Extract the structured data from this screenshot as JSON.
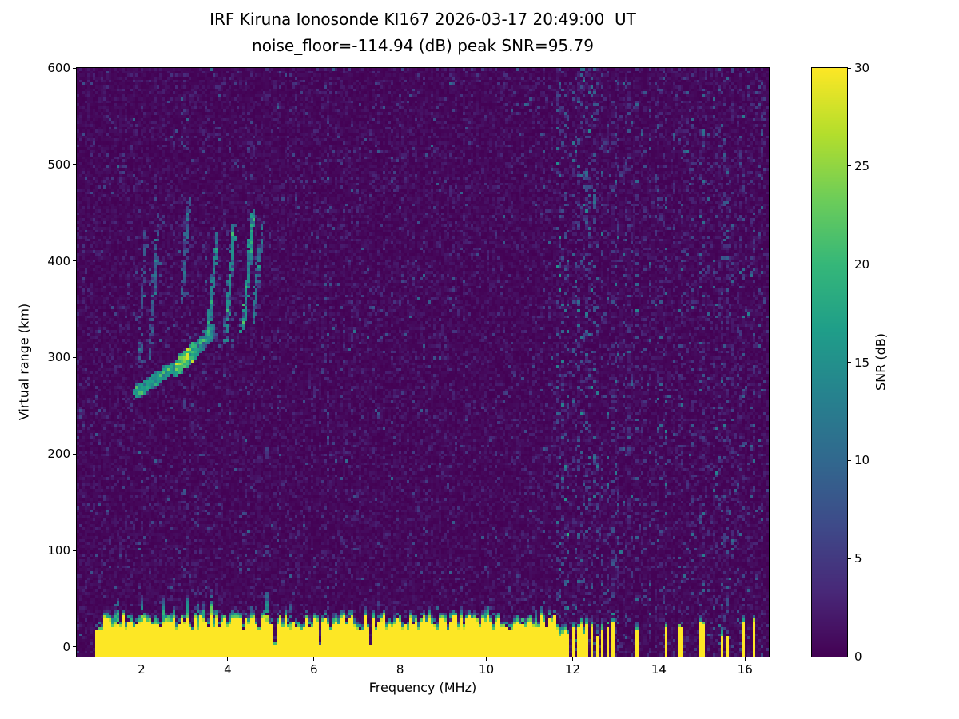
{
  "figure": {
    "station": "IRF Kiruna Ionosonde KI167",
    "timestamp_ut": "2026-03-17 20:49:00 UT",
    "noise_floor_db": -114.94,
    "peak_snr_db": 95.79,
    "background": "#ffffff"
  },
  "chart_data": {
    "type": "heatmap",
    "title": "IRF Kiruna Ionosonde KI167 2026-03-17 20:49:00  UT",
    "subtitle": "noise_floor=-114.94 (dB) peak SNR=95.79",
    "xlabel": "Frequency (MHz)",
    "ylabel": "Virtual range (km)",
    "xlim": [
      0.5,
      16.55
    ],
    "ylim": [
      -10,
      600
    ],
    "xticks": [
      2,
      4,
      6,
      8,
      10,
      12,
      14,
      16
    ],
    "yticks": [
      0,
      100,
      200,
      300,
      400,
      500,
      600
    ],
    "grid": false,
    "colorbar": {
      "label": "SNR (dB)",
      "min": 0,
      "max": 30,
      "ticks": [
        0,
        5,
        10,
        15,
        20,
        25,
        30
      ],
      "colormap": "viridis",
      "low_color": "#440154",
      "high_color": "#fde725"
    },
    "features": {
      "background_noise_mean_db": 0.8,
      "ground_pulse": {
        "f_start": 0.93,
        "f_end": 11.63,
        "top_km_min": 18,
        "top_km_max": 34,
        "value_db": 30
      },
      "band_gaps_mhz": [
        5.12,
        6.14,
        7.3
      ],
      "rfi_bars_mhz": [
        11.68,
        11.79,
        11.9,
        12.01,
        12.12,
        12.23,
        12.34,
        12.46,
        12.58,
        12.7,
        12.82,
        12.95,
        13.5,
        14.18,
        14.52,
        15.0,
        15.45,
        15.58,
        15.95,
        16.2
      ],
      "rfi_columns": [
        {
          "f": 1.7,
          "s": 0.15
        },
        {
          "f": 2.2,
          "s": 0.2
        },
        {
          "f": 2.6,
          "s": 0.12
        },
        {
          "f": 3.0,
          "s": 0.15
        },
        {
          "f": 3.45,
          "s": 0.12
        },
        {
          "f": 3.8,
          "s": 0.12
        },
        {
          "f": 4.45,
          "s": 0.15
        },
        {
          "f": 5.2,
          "s": 0.1
        },
        {
          "f": 5.6,
          "s": 0.1
        },
        {
          "f": 6.3,
          "s": 0.2
        },
        {
          "f": 6.9,
          "s": 0.1
        },
        {
          "f": 7.5,
          "s": 0.12
        },
        {
          "f": 8.1,
          "s": 0.1
        },
        {
          "f": 8.6,
          "s": 0.1
        },
        {
          "f": 9.2,
          "s": 0.1
        },
        {
          "f": 9.8,
          "s": 0.1
        },
        {
          "f": 10.4,
          "s": 0.1
        },
        {
          "f": 10.9,
          "s": 0.1
        },
        {
          "f": 11.3,
          "s": 0.12
        },
        {
          "f": 11.68,
          "s": 0.7
        },
        {
          "f": 11.79,
          "s": 0.6
        },
        {
          "f": 11.9,
          "s": 0.65
        },
        {
          "f": 12.01,
          "s": 0.6
        },
        {
          "f": 12.12,
          "s": 0.55
        },
        {
          "f": 12.23,
          "s": 0.6
        },
        {
          "f": 12.34,
          "s": 0.5
        },
        {
          "f": 12.46,
          "s": 0.6
        },
        {
          "f": 12.58,
          "s": 0.5
        },
        {
          "f": 12.7,
          "s": 0.55
        },
        {
          "f": 12.82,
          "s": 0.5
        },
        {
          "f": 12.95,
          "s": 0.6
        },
        {
          "f": 13.05,
          "s": 0.45
        },
        {
          "f": 13.2,
          "s": 0.3
        },
        {
          "f": 13.35,
          "s": 0.35
        },
        {
          "f": 13.5,
          "s": 0.55
        },
        {
          "f": 13.65,
          "s": 0.3
        },
        {
          "f": 13.8,
          "s": 0.35
        },
        {
          "f": 13.95,
          "s": 0.3
        },
        {
          "f": 14.08,
          "s": 0.35
        },
        {
          "f": 14.18,
          "s": 0.5
        },
        {
          "f": 14.35,
          "s": 0.3
        },
        {
          "f": 14.52,
          "s": 0.45
        },
        {
          "f": 14.65,
          "s": 0.3
        },
        {
          "f": 14.8,
          "s": 0.35
        },
        {
          "f": 15.0,
          "s": 0.5
        },
        {
          "f": 15.15,
          "s": 0.3
        },
        {
          "f": 15.3,
          "s": 0.35
        },
        {
          "f": 15.45,
          "s": 0.5
        },
        {
          "f": 15.58,
          "s": 0.4
        },
        {
          "f": 15.7,
          "s": 0.3
        },
        {
          "f": 15.85,
          "s": 0.35
        },
        {
          "f": 15.95,
          "s": 0.45
        },
        {
          "f": 16.1,
          "s": 0.3
        },
        {
          "f": 16.2,
          "s": 0.45
        },
        {
          "f": 16.35,
          "s": 0.3
        }
      ],
      "echo_trace": [
        {
          "f0": 1.85,
          "f1": 2.95,
          "r0": 263,
          "r1": 296,
          "n": 500,
          "spread": 6,
          "snr": 13
        },
        {
          "f0": 2.8,
          "f1": 3.25,
          "r0": 288,
          "r1": 308,
          "n": 260,
          "spread": 9,
          "snr": 16
        },
        {
          "f0": 3.2,
          "f1": 3.7,
          "r0": 305,
          "r1": 330,
          "n": 180,
          "spread": 8,
          "snr": 12
        },
        {
          "f0": 3.55,
          "f1": 3.75,
          "r0": 325,
          "r1": 425,
          "n": 160,
          "spread": 6,
          "snr": 11
        },
        {
          "f0": 3.95,
          "f1": 4.15,
          "r0": 320,
          "r1": 440,
          "n": 170,
          "spread": 6,
          "snr": 12
        },
        {
          "f0": 4.35,
          "f1": 4.6,
          "r0": 330,
          "r1": 452,
          "n": 200,
          "spread": 7,
          "snr": 13
        },
        {
          "f0": 4.6,
          "f1": 4.8,
          "r0": 340,
          "r1": 440,
          "n": 90,
          "spread": 6,
          "snr": 10
        },
        {
          "f0": 2.2,
          "f1": 2.4,
          "r0": 300,
          "r1": 450,
          "n": 90,
          "spread": 6,
          "snr": 8
        },
        {
          "f0": 1.95,
          "f1": 2.1,
          "r0": 290,
          "r1": 430,
          "n": 70,
          "spread": 5,
          "snr": 7
        },
        {
          "f0": 2.95,
          "f1": 3.1,
          "r0": 360,
          "r1": 465,
          "n": 80,
          "spread": 5,
          "snr": 8
        }
      ]
    }
  }
}
